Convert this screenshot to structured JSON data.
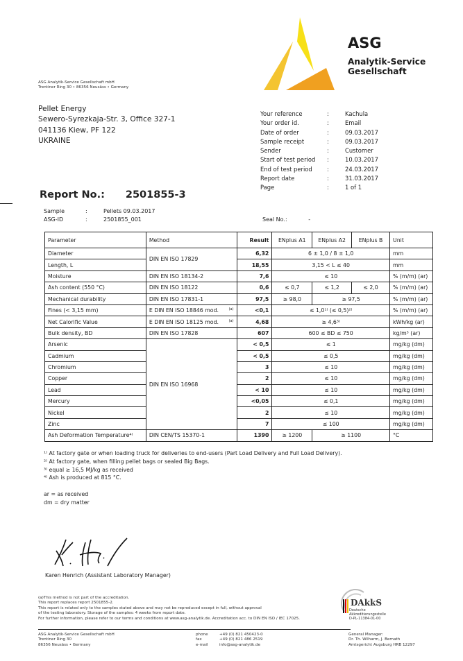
{
  "logo": {
    "name": "ASG",
    "line1": "Analytik-Service",
    "line2": "Gesellschaft",
    "colors": {
      "yellow": "#f7e017",
      "gold": "#f4c430",
      "orange": "#f0a020"
    }
  },
  "sender_line": {
    "line1": "ASG Analytik-Service Gesellschaft mbH",
    "line2": "Trentiner Ring 30 • 86356 Neusäss • Germany"
  },
  "recipient": [
    "Pellet Energy",
    "Sewero-Syrezkaja-Str. 3, Office 327-1",
    "041136 Kiew, PF 122",
    "UKRAINE"
  ],
  "meta": [
    {
      "k": "Your reference",
      "v": "Kachula"
    },
    {
      "k": "Your order id.",
      "v": "Email"
    },
    {
      "k": "Date of order",
      "v": "09.03.2017"
    },
    {
      "k": "Sample receipt",
      "v": "09.03.2017"
    },
    {
      "k": "Sender",
      "v": "Customer"
    },
    {
      "k": "Start of test period",
      "v": "10.03.2017"
    },
    {
      "k": "End of test period",
      "v": "24.03.2017"
    },
    {
      "k": "Report date",
      "v": "31.03.2017"
    },
    {
      "k": "Page",
      "v": "1 of 1"
    }
  ],
  "report": {
    "label": "Report No.:",
    "number": "2501855-3"
  },
  "sample": [
    {
      "k": "Sample",
      "v": "Pellets 09.03.2017"
    },
    {
      "k": "ASG-ID",
      "v": "2501855_001"
    }
  ],
  "seal": {
    "label": "Seal No.:",
    "value": "-"
  },
  "table": {
    "headers": [
      "Parameter",
      "Method",
      "Result",
      "ENplus A1",
      "ENplus A2",
      "ENplus B",
      "Unit"
    ],
    "rows": [
      {
        "param": "Diameter",
        "method": "DIN EN ISO 17829",
        "method_rows": 2,
        "result": "6,32",
        "limits": [
          {
            "t": "6 ± 1,0 / 8 ± 1,0",
            "span": 3
          }
        ],
        "unit": "mm"
      },
      {
        "param": "Length, L",
        "result": "18,55",
        "limits": [
          {
            "t": "3,15 < L ≤ 40",
            "span": 3
          }
        ],
        "unit": "mm"
      },
      {
        "param": "Moisture",
        "method": "DIN EN ISO 18134-2",
        "method_rows": 1,
        "result": "7,6",
        "limits": [
          {
            "t": "≤ 10",
            "span": 3
          }
        ],
        "unit": "% (m/m) (ar)"
      },
      {
        "param": "Ash content  (550 °C)",
        "method": "DIN EN ISO 18122",
        "method_rows": 1,
        "result": "0,6",
        "limits": [
          {
            "t": "≤ 0,7",
            "span": 1
          },
          {
            "t": "≤ 1,2",
            "span": 1
          },
          {
            "t": "≤ 2,0",
            "span": 1
          }
        ],
        "unit": "% (m/m) (ar)"
      },
      {
        "param": "Mechanical durability",
        "method": "DIN EN ISO 17831-1",
        "method_rows": 1,
        "result": "97,5",
        "limits": [
          {
            "t": "≥ 98,0",
            "span": 1
          },
          {
            "t": "≥ 97,5",
            "span": 2
          }
        ],
        "unit": "% (m/m) (ar)"
      },
      {
        "param": "Fines (< 3,15 mm)",
        "method": "E DIN EN ISO 18846 mod.",
        "method_note": "(a)",
        "method_rows": 1,
        "result": "<0,1",
        "limits": [
          {
            "t": "≤ 1,0¹⁾ (≤ 0,5)²⁾",
            "span": 3
          }
        ],
        "unit": "% (m/m) (ar)"
      },
      {
        "param": "Net Calorific Value",
        "method": "E DIN EN ISO 18125 mod.",
        "method_note": "(a)",
        "method_rows": 1,
        "result": "4,68",
        "limits": [
          {
            "t": "≥ 4,6³⁾",
            "span": 3
          }
        ],
        "unit": "kWh/kg (ar)"
      },
      {
        "param": "Bulk density, BD",
        "method": "DIN EN ISO 17828",
        "method_rows": 1,
        "result": "607",
        "limits": [
          {
            "t": "600 ≤ BD ≤ 750",
            "span": 3
          }
        ],
        "unit": "kg/m³ (ar)"
      },
      {
        "param": "Arsenic",
        "method": "DIN EN ISO 16968",
        "method_rows": 8,
        "result": "< 0,5",
        "limits": [
          {
            "t": "≤ 1",
            "span": 3
          }
        ],
        "unit": "mg/kg (dm)"
      },
      {
        "param": "Cadmium",
        "result": "< 0,5",
        "limits": [
          {
            "t": "≤ 0,5",
            "span": 3
          }
        ],
        "unit": "mg/kg (dm)"
      },
      {
        "param": "Chromium",
        "result": "3",
        "limits": [
          {
            "t": "≤ 10",
            "span": 3
          }
        ],
        "unit": "mg/kg (dm)"
      },
      {
        "param": "Copper",
        "result": "2",
        "limits": [
          {
            "t": "≤ 10",
            "span": 3
          }
        ],
        "unit": "mg/kg (dm)"
      },
      {
        "param": "Lead",
        "result": "< 10",
        "limits": [
          {
            "t": "≤ 10",
            "span": 3
          }
        ],
        "unit": "mg/kg (dm)"
      },
      {
        "param": "Mercury",
        "result": "<0,05",
        "limits": [
          {
            "t": "≤ 0,1",
            "span": 3
          }
        ],
        "unit": "mg/kg (dm)"
      },
      {
        "param": "Nickel",
        "result": "2",
        "limits": [
          {
            "t": "≤ 10",
            "span": 3
          }
        ],
        "unit": "mg/kg (dm)"
      },
      {
        "param": "Zinc",
        "result": "7",
        "limits": [
          {
            "t": "≤ 100",
            "span": 3
          }
        ],
        "unit": "mg/kg (dm)"
      },
      {
        "param": "Ash Deformation Temperature⁴⁾",
        "method": "DIN CEN/TS 15370-1",
        "method_rows": 1,
        "result": "1390",
        "limits": [
          {
            "t": "≥ 1200",
            "span": 1
          },
          {
            "t": "≥ 1100",
            "span": 2
          }
        ],
        "unit": "°C"
      }
    ]
  },
  "footnotes": [
    "¹⁾ At factory gate or when loading truck for deliveries to end-users (Part Load Delivery and Full Load Delivery).",
    "²⁾ At factory gate, when filling pellet bags or sealed Big Bags.",
    "³⁾ equal ≥ 16,5 MJ/kg as received",
    "⁴⁾ Ash is produced at 815 °C."
  ],
  "abbreviations": [
    "ar = as received",
    "dm = dry matter"
  ],
  "signature": {
    "initials": "K. Heil",
    "signer": "Karen Henrich (Assistant Laboratory Manager)"
  },
  "legal": [
    "(a)This method is not part of the accreditation.",
    "This report replaces report 2501855-2.",
    "This report is related only to the samples stated above and may not be reproduced except in full, without approval",
    "of the testing laboratory. Storage of the samples: 4 weeks from report date.",
    "For further information, please refer to our terms and conditions at www.asg-analytik.de.   Accreditation acc. to DIN EN ISO / IEC 17025."
  ],
  "dakks": {
    "name": "DAkkS",
    "line1": "Deutsche",
    "line2": "Akkreditierungsstelle",
    "line3": "D-PL-11384-01-00"
  },
  "footer": {
    "company": [
      "ASG Analytik-Service Gesellschaft mbH",
      "Trentiner Ring 30",
      "86356 Neusäss • Germany"
    ],
    "contact": [
      {
        "k": "phone",
        "v": "+49 (0) 821 450423-0"
      },
      {
        "k": "fax",
        "v": "+49 (0) 821 486 2519"
      },
      {
        "k": "e-mail",
        "v": "info@asg-analytik.de"
      }
    ],
    "management": [
      "General Manager:",
      "Dr. Th. Wilharm, J. Bernath",
      "Amtsgericht Augsburg HRB 12297"
    ]
  }
}
